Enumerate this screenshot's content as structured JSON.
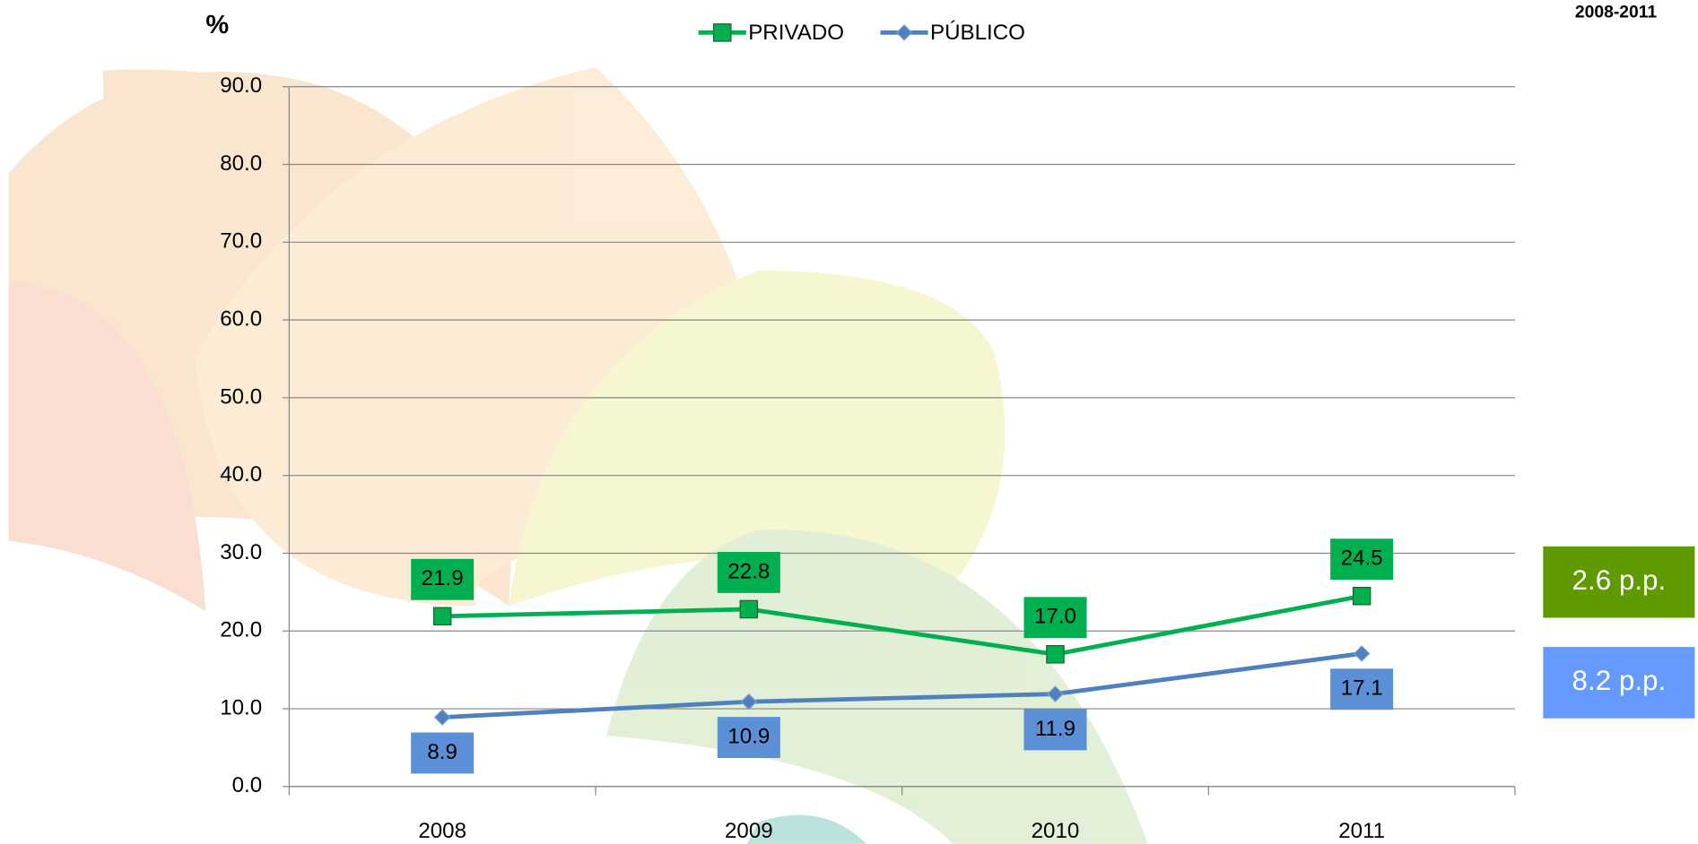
{
  "chart_data": {
    "type": "line",
    "y_axis_label": "%",
    "period": "2008-2011",
    "categories": [
      "2008",
      "2009",
      "2010",
      "2011"
    ],
    "series": [
      {
        "name": "PRIVADO",
        "color": "#00b050",
        "marker": "square",
        "values": [
          21.9,
          22.8,
          17.0,
          24.5
        ],
        "value_labels": [
          "21.9",
          "22.8",
          "17.0",
          "24.5"
        ]
      },
      {
        "name": "PÚBLICO",
        "color": "#4f81bd",
        "marker": "diamond",
        "values": [
          8.9,
          10.9,
          11.9,
          17.1
        ],
        "value_labels": [
          "8.9",
          "10.9",
          "11.9",
          "17.1"
        ]
      }
    ],
    "ylim": [
      0,
      90
    ],
    "yticks": [
      {
        "value": 0,
        "label": "0.0"
      },
      {
        "value": 10,
        "label": "10.0"
      },
      {
        "value": 20,
        "label": "20.0"
      },
      {
        "value": 30,
        "label": "30.0"
      },
      {
        "value": 40,
        "label": "40.0"
      },
      {
        "value": 50,
        "label": "50.0"
      },
      {
        "value": 60,
        "label": "60.0"
      },
      {
        "value": 70,
        "label": "70.0"
      },
      {
        "value": 80,
        "label": "80.0"
      },
      {
        "value": 90,
        "label": "90.0"
      }
    ],
    "grid": true,
    "legend": "top",
    "annotations": [
      {
        "text": "2.6 p.p.",
        "color": "#5f9a00"
      },
      {
        "text": "8.2 p.p.",
        "color": "#6699ff"
      }
    ]
  }
}
